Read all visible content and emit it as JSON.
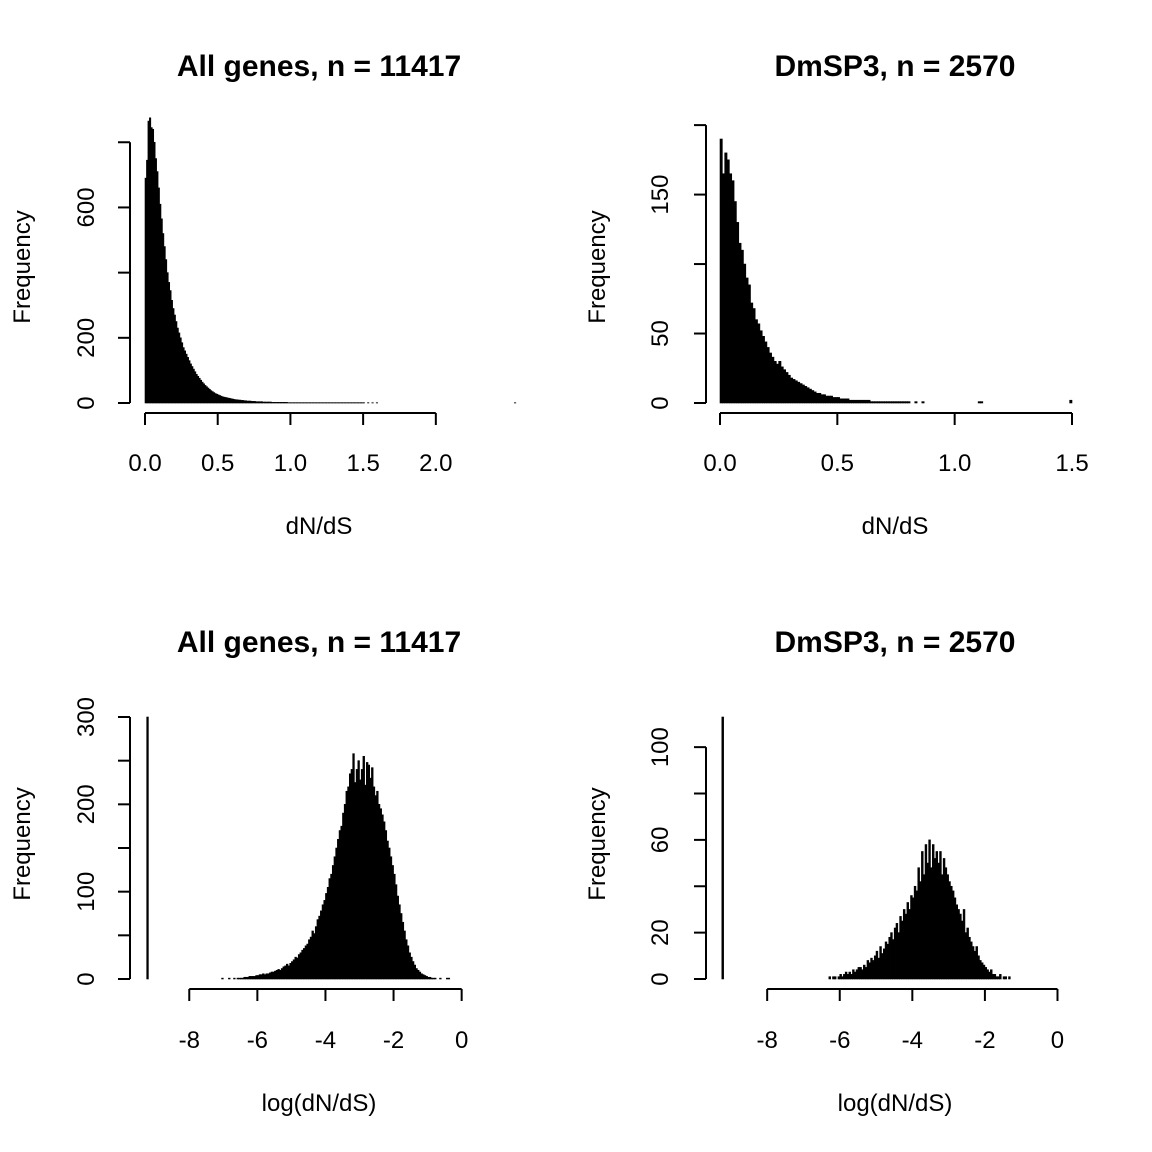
{
  "chart_data": [
    {
      "type": "bar",
      "title": "All genes, n = 11417",
      "xlabel": "dN/dS",
      "ylabel": "Frequency",
      "xlim": [
        0,
        2.4
      ],
      "ylim": [
        0,
        810
      ],
      "x_ticks": [
        0.0,
        0.5,
        1.0,
        1.5,
        2.0
      ],
      "x_tick_labels": [
        "0.0",
        "0.5",
        "1.0",
        "1.5",
        "2.0"
      ],
      "y_ticks": [
        0,
        200,
        400,
        600,
        800
      ],
      "y_tick_labels": [
        "0",
        "200",
        "",
        "600",
        ""
      ],
      "bin_width": 0.01,
      "bin_start": 0,
      "values": [
        690,
        745,
        865,
        875,
        845,
        840,
        800,
        750,
        710,
        660,
        610,
        565,
        520,
        480,
        440,
        400,
        370,
        345,
        315,
        290,
        270,
        250,
        230,
        215,
        200,
        185,
        170,
        160,
        150,
        140,
        130,
        120,
        112,
        104,
        96,
        88,
        82,
        76,
        70,
        64,
        59,
        54,
        50,
        46,
        42,
        38,
        35,
        32,
        29,
        27,
        25,
        23,
        21,
        19,
        18,
        17,
        16,
        15,
        14,
        13,
        12,
        11,
        10,
        10,
        9,
        9,
        8,
        8,
        7,
        7,
        6,
        6,
        6,
        5,
        5,
        5,
        4,
        4,
        4,
        4,
        4,
        3,
        3,
        3,
        3,
        3,
        3,
        2,
        2,
        2,
        2,
        2,
        2,
        2,
        2,
        2,
        2,
        2,
        1,
        1,
        1,
        1,
        1,
        1,
        1,
        1,
        1,
        1,
        1,
        1,
        1,
        1,
        1,
        1,
        1,
        1,
        1,
        1,
        1,
        1,
        1,
        1,
        1,
        1,
        1,
        1,
        1,
        1,
        1,
        1,
        1,
        1,
        1,
        1,
        1,
        1,
        1,
        1,
        1,
        1,
        1,
        1,
        1,
        1,
        1,
        1,
        1,
        1,
        1,
        1,
        1,
        0,
        0,
        1,
        0,
        0,
        1,
        0,
        0,
        1,
        0,
        0,
        0,
        0,
        0,
        0,
        0,
        0,
        0,
        0,
        0,
        0,
        0,
        0,
        0,
        0,
        0,
        0,
        0,
        0,
        0,
        0,
        0,
        0,
        0,
        0,
        0,
        0,
        0,
        0,
        0,
        0,
        0,
        0,
        0,
        0,
        0,
        0,
        0,
        0,
        0,
        0,
        0,
        0,
        0,
        0,
        0,
        0,
        0,
        0,
        0,
        0,
        0,
        0,
        0,
        0,
        0,
        0,
        0,
        0,
        0,
        0,
        0,
        0,
        0,
        0,
        0,
        0,
        0,
        0,
        0,
        0,
        0,
        0,
        0,
        0,
        0,
        0,
        0,
        0,
        0,
        0,
        0,
        0,
        0,
        0,
        0,
        0,
        0,
        0,
        0,
        0,
        0,
        0,
        1
      ]
    },
    {
      "type": "bar",
      "title": "DmSP3, n = 2570",
      "xlabel": "dN/dS",
      "ylabel": "Frequency",
      "xlim": [
        0,
        1.5
      ],
      "ylim": [
        0,
        190
      ],
      "x_ticks": [
        0.0,
        0.5,
        1.0,
        1.5
      ],
      "x_tick_labels": [
        "0.0",
        "0.5",
        "1.0",
        "1.5"
      ],
      "y_ticks": [
        0,
        50,
        100,
        150,
        200
      ],
      "y_tick_labels": [
        "0",
        "50",
        "",
        "150",
        ""
      ],
      "bin_width": 0.01,
      "bin_start": 0,
      "values": [
        190,
        165,
        180,
        175,
        165,
        160,
        145,
        130,
        115,
        110,
        100,
        90,
        85,
        72,
        68,
        60,
        57,
        52,
        48,
        44,
        40,
        36,
        33,
        30,
        28,
        30,
        26,
        24,
        22,
        20,
        18,
        17,
        16,
        15,
        14,
        13,
        12,
        11,
        10,
        9,
        8,
        7,
        7,
        6,
        6,
        5,
        5,
        5,
        4,
        4,
        4,
        3,
        3,
        3,
        3,
        2,
        2,
        2,
        2,
        2,
        2,
        2,
        2,
        2,
        1,
        1,
        1,
        1,
        1,
        1,
        1,
        1,
        1,
        1,
        1,
        1,
        1,
        1,
        1,
        1,
        1,
        0,
        0,
        1,
        0,
        0,
        1,
        0,
        0,
        0,
        0,
        0,
        0,
        0,
        0,
        0,
        0,
        0,
        0,
        0,
        0,
        0,
        0,
        0,
        0,
        0,
        0,
        0,
        0,
        0,
        1,
        1,
        0,
        0,
        0,
        0,
        0,
        0,
        0,
        0,
        0,
        0,
        0,
        0,
        0,
        0,
        0,
        0,
        0,
        0,
        0,
        0,
        0,
        0,
        0,
        0,
        0,
        0,
        0,
        0,
        0,
        0,
        0,
        0,
        0,
        0,
        0,
        0,
        0,
        2
      ]
    },
    {
      "type": "bar",
      "title": "All genes, n = 11417",
      "xlabel": "log(dN/dS)",
      "ylabel": "Frequency",
      "xlim": [
        -9.3,
        0.95
      ],
      "ylim": [
        0,
        300
      ],
      "x_ticks": [
        -8,
        -6,
        -4,
        -2,
        0
      ],
      "x_tick_labels": [
        "-8",
        "-6",
        "-4",
        "-2",
        "0"
      ],
      "y_ticks": [
        0,
        50,
        100,
        150,
        200,
        250,
        300
      ],
      "y_tick_labels": [
        "0",
        "",
        "100",
        "",
        "200",
        "",
        "300"
      ],
      "bin_width": 0.05,
      "bin_start": -9.25,
      "values": [
        300,
        0,
        0,
        0,
        0,
        0,
        0,
        0,
        0,
        0,
        0,
        0,
        0,
        0,
        0,
        0,
        0,
        0,
        0,
        0,
        0,
        0,
        0,
        0,
        0,
        0,
        0,
        0,
        0,
        0,
        0,
        0,
        0,
        0,
        0,
        0,
        0,
        0,
        0,
        0,
        0,
        0,
        0,
        0,
        1,
        0,
        0,
        0,
        1,
        0,
        0,
        1,
        0,
        1,
        1,
        1,
        1,
        2,
        2,
        2,
        3,
        3,
        3,
        3,
        4,
        4,
        5,
        5,
        6,
        5,
        6,
        6,
        7,
        8,
        8,
        9,
        10,
        11,
        10,
        12,
        14,
        15,
        17,
        15,
        18,
        20,
        22,
        25,
        24,
        28,
        30,
        33,
        35,
        38,
        40,
        45,
        48,
        55,
        52,
        60,
        68,
        72,
        78,
        85,
        90,
        98,
        105,
        115,
        120,
        130,
        140,
        150,
        160,
        170,
        175,
        190,
        200,
        215,
        220,
        235,
        240,
        258,
        225,
        240,
        250,
        228,
        240,
        255,
        222,
        248,
        245,
        230,
        242,
        220,
        210,
        215,
        200,
        195,
        188,
        180,
        170,
        158,
        150,
        140,
        130,
        120,
        108,
        95,
        85,
        75,
        65,
        55,
        45,
        38,
        30,
        25,
        20,
        16,
        12,
        10,
        8,
        6,
        5,
        4,
        3,
        2,
        2,
        1,
        1,
        1,
        0,
        0,
        1,
        0,
        0,
        0,
        1,
        1
      ]
    },
    {
      "type": "bar",
      "title": "DmSP3, n = 2570",
      "xlabel": "log(dN/dS)",
      "ylabel": "Frequency",
      "xlim": [
        -9.3,
        0.4
      ],
      "ylim": [
        0,
        113
      ],
      "x_ticks": [
        -8,
        -6,
        -4,
        -2,
        0
      ],
      "x_tick_labels": [
        "-8",
        "-6",
        "-4",
        "-2",
        "0"
      ],
      "y_ticks": [
        0,
        20,
        40,
        60,
        80,
        100
      ],
      "y_tick_labels": [
        "0",
        "20",
        "",
        "60",
        "",
        "100"
      ],
      "bin_width": 0.05,
      "bin_start": -9.25,
      "values": [
        113,
        0,
        0,
        0,
        0,
        0,
        0,
        0,
        0,
        0,
        0,
        0,
        0,
        0,
        0,
        0,
        0,
        0,
        0,
        0,
        0,
        0,
        0,
        0,
        0,
        0,
        0,
        0,
        0,
        0,
        0,
        0,
        0,
        0,
        0,
        0,
        0,
        0,
        0,
        0,
        0,
        0,
        0,
        0,
        0,
        0,
        0,
        0,
        0,
        0,
        0,
        0,
        0,
        0,
        0,
        0,
        0,
        0,
        0,
        1,
        0,
        1,
        1,
        0,
        1,
        2,
        1,
        2,
        3,
        2,
        3,
        2,
        4,
        3,
        4,
        5,
        5,
        4,
        6,
        5,
        8,
        7,
        9,
        8,
        10,
        12,
        9,
        14,
        11,
        13,
        16,
        15,
        18,
        20,
        17,
        22,
        24,
        20,
        27,
        25,
        30,
        28,
        33,
        30,
        36,
        35,
        40,
        38,
        48,
        42,
        55,
        45,
        58,
        50,
        60,
        48,
        58,
        52,
        55,
        50,
        55,
        45,
        52,
        48,
        45,
        42,
        40,
        38,
        35,
        32,
        30,
        28,
        25,
        30,
        20,
        22,
        18,
        16,
        14,
        12,
        14,
        10,
        8,
        7,
        6,
        5,
        4,
        3,
        4,
        2,
        2,
        1,
        1,
        2,
        0,
        1,
        1,
        0,
        1
      ]
    }
  ]
}
